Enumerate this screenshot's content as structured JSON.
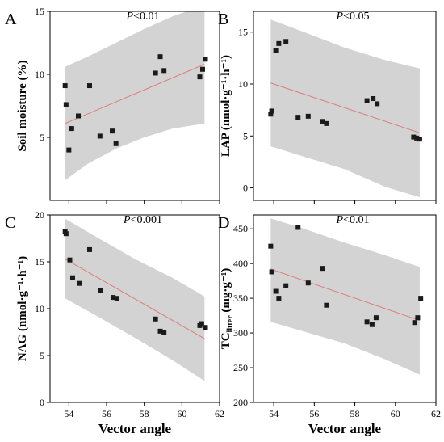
{
  "chart_data": [
    {
      "type": "scatter",
      "panel": "A",
      "annotation": "P<0.01",
      "xlabel": "",
      "ylabel": "Soil moisture (%)",
      "xlim": [
        53,
        62
      ],
      "ylim": [
        0,
        15
      ],
      "xticks": [],
      "yticks": [
        5,
        10,
        15
      ],
      "points": [
        [
          53.8,
          9.1
        ],
        [
          53.85,
          7.6
        ],
        [
          54.0,
          4.0
        ],
        [
          54.15,
          5.7
        ],
        [
          54.5,
          6.7
        ],
        [
          55.1,
          9.1
        ],
        [
          55.65,
          5.1
        ],
        [
          56.3,
          5.5
        ],
        [
          56.5,
          4.5
        ],
        [
          58.6,
          10.1
        ],
        [
          58.85,
          11.4
        ],
        [
          59.05,
          10.3
        ],
        [
          60.95,
          9.8
        ],
        [
          61.1,
          10.4
        ],
        [
          61.25,
          11.2
        ]
      ],
      "trend": [
        [
          53.8,
          6.1
        ],
        [
          61.2,
          10.8
        ]
      ],
      "band_upper": [
        [
          53.8,
          10.6
        ],
        [
          55.0,
          11.4
        ],
        [
          56.5,
          12.5
        ],
        [
          58.0,
          13.6
        ],
        [
          59.5,
          14.6
        ],
        [
          61.2,
          15.5
        ]
      ],
      "band_lower": [
        [
          53.8,
          1.6
        ],
        [
          55.0,
          2.9
        ],
        [
          56.5,
          4.1
        ],
        [
          58.0,
          5.0
        ],
        [
          59.5,
          5.7
        ],
        [
          61.2,
          6.1
        ]
      ]
    },
    {
      "type": "scatter",
      "panel": "B",
      "annotation": "P<0.05",
      "xlabel": "",
      "ylabel": "LAP (nmol·g⁻¹·h⁻¹)",
      "xlim": [
        53,
        62
      ],
      "ylim": [
        -1.2,
        17
      ],
      "xticks": [],
      "yticks": [
        0,
        5,
        10,
        15
      ],
      "points": [
        [
          53.85,
          7.1
        ],
        [
          53.9,
          7.4
        ],
        [
          54.1,
          13.2
        ],
        [
          54.25,
          13.9
        ],
        [
          54.6,
          14.1
        ],
        [
          55.2,
          6.8
        ],
        [
          55.7,
          6.9
        ],
        [
          56.4,
          6.4
        ],
        [
          56.6,
          6.2
        ],
        [
          58.6,
          8.4
        ],
        [
          58.9,
          8.6
        ],
        [
          59.1,
          8.1
        ],
        [
          60.9,
          4.9
        ],
        [
          61.05,
          4.8
        ],
        [
          61.2,
          4.7
        ]
      ],
      "trend": [
        [
          53.85,
          10.1
        ],
        [
          61.2,
          5.3
        ]
      ],
      "band_upper": [
        [
          53.85,
          16.2
        ],
        [
          55.5,
          15.0
        ],
        [
          57.5,
          13.5
        ],
        [
          59.5,
          12.3
        ],
        [
          61.2,
          11.5
        ]
      ],
      "band_lower": [
        [
          53.85,
          4.0
        ],
        [
          55.5,
          3.0
        ],
        [
          57.5,
          1.8
        ],
        [
          59.5,
          0.1
        ],
        [
          61.2,
          -0.9
        ]
      ]
    },
    {
      "type": "scatter",
      "panel": "C",
      "annotation": "P<0.001",
      "xlabel": "Vector angle",
      "ylabel": "NAG (nmol·g⁻¹·h⁻¹)",
      "xlim": [
        53,
        62
      ],
      "ylim": [
        0,
        20
      ],
      "xticks": [
        54,
        56,
        58,
        60,
        62
      ],
      "yticks": [
        0,
        5,
        10,
        15,
        20
      ],
      "points": [
        [
          53.8,
          18.2
        ],
        [
          53.85,
          18.0
        ],
        [
          54.05,
          15.2
        ],
        [
          54.2,
          13.3
        ],
        [
          54.55,
          12.7
        ],
        [
          55.1,
          16.3
        ],
        [
          55.7,
          11.9
        ],
        [
          56.35,
          11.2
        ],
        [
          56.55,
          11.1
        ],
        [
          58.6,
          8.9
        ],
        [
          58.85,
          7.6
        ],
        [
          59.05,
          7.5
        ],
        [
          60.95,
          8.2
        ],
        [
          61.05,
          8.4
        ],
        [
          61.25,
          8.0
        ]
      ],
      "trend": [
        [
          53.8,
          15.3
        ],
        [
          61.2,
          6.8
        ]
      ],
      "band_upper": [
        [
          53.8,
          19.6
        ],
        [
          55.5,
          17.6
        ],
        [
          57.5,
          15.3
        ],
        [
          59.5,
          13.3
        ],
        [
          61.2,
          11.3
        ]
      ],
      "band_lower": [
        [
          53.8,
          11.1
        ],
        [
          55.5,
          9.2
        ],
        [
          57.5,
          6.9
        ],
        [
          59.5,
          4.5
        ],
        [
          61.2,
          2.3
        ]
      ]
    },
    {
      "type": "scatter",
      "panel": "D",
      "annotation": "P<0.01",
      "xlabel": "Vector angle",
      "ylabel": "TC_litter (mg·g⁻¹)",
      "xlim": [
        53,
        62
      ],
      "ylim": [
        200,
        470
      ],
      "xticks": [
        54,
        56,
        58,
        60,
        62
      ],
      "yticks": [
        200,
        250,
        300,
        350,
        400,
        450
      ],
      "points": [
        [
          53.85,
          425
        ],
        [
          53.9,
          388
        ],
        [
          54.1,
          360
        ],
        [
          54.25,
          350
        ],
        [
          54.6,
          368
        ],
        [
          55.2,
          452
        ],
        [
          55.7,
          372
        ],
        [
          56.4,
          393
        ],
        [
          56.6,
          340
        ],
        [
          58.6,
          316
        ],
        [
          58.85,
          312
        ],
        [
          59.05,
          322
        ],
        [
          60.95,
          315
        ],
        [
          61.1,
          322
        ],
        [
          61.25,
          350
        ]
      ],
      "trend": [
        [
          53.85,
          392
        ],
        [
          61.2,
          318
        ]
      ],
      "band_upper": [
        [
          53.85,
          465
        ],
        [
          55.5,
          450
        ],
        [
          57.5,
          430
        ],
        [
          59.5,
          412
        ],
        [
          61.2,
          395
        ]
      ],
      "band_lower": [
        [
          53.85,
          316
        ],
        [
          55.5,
          302
        ],
        [
          57.5,
          285
        ],
        [
          59.5,
          262
        ],
        [
          61.2,
          240
        ]
      ]
    }
  ]
}
